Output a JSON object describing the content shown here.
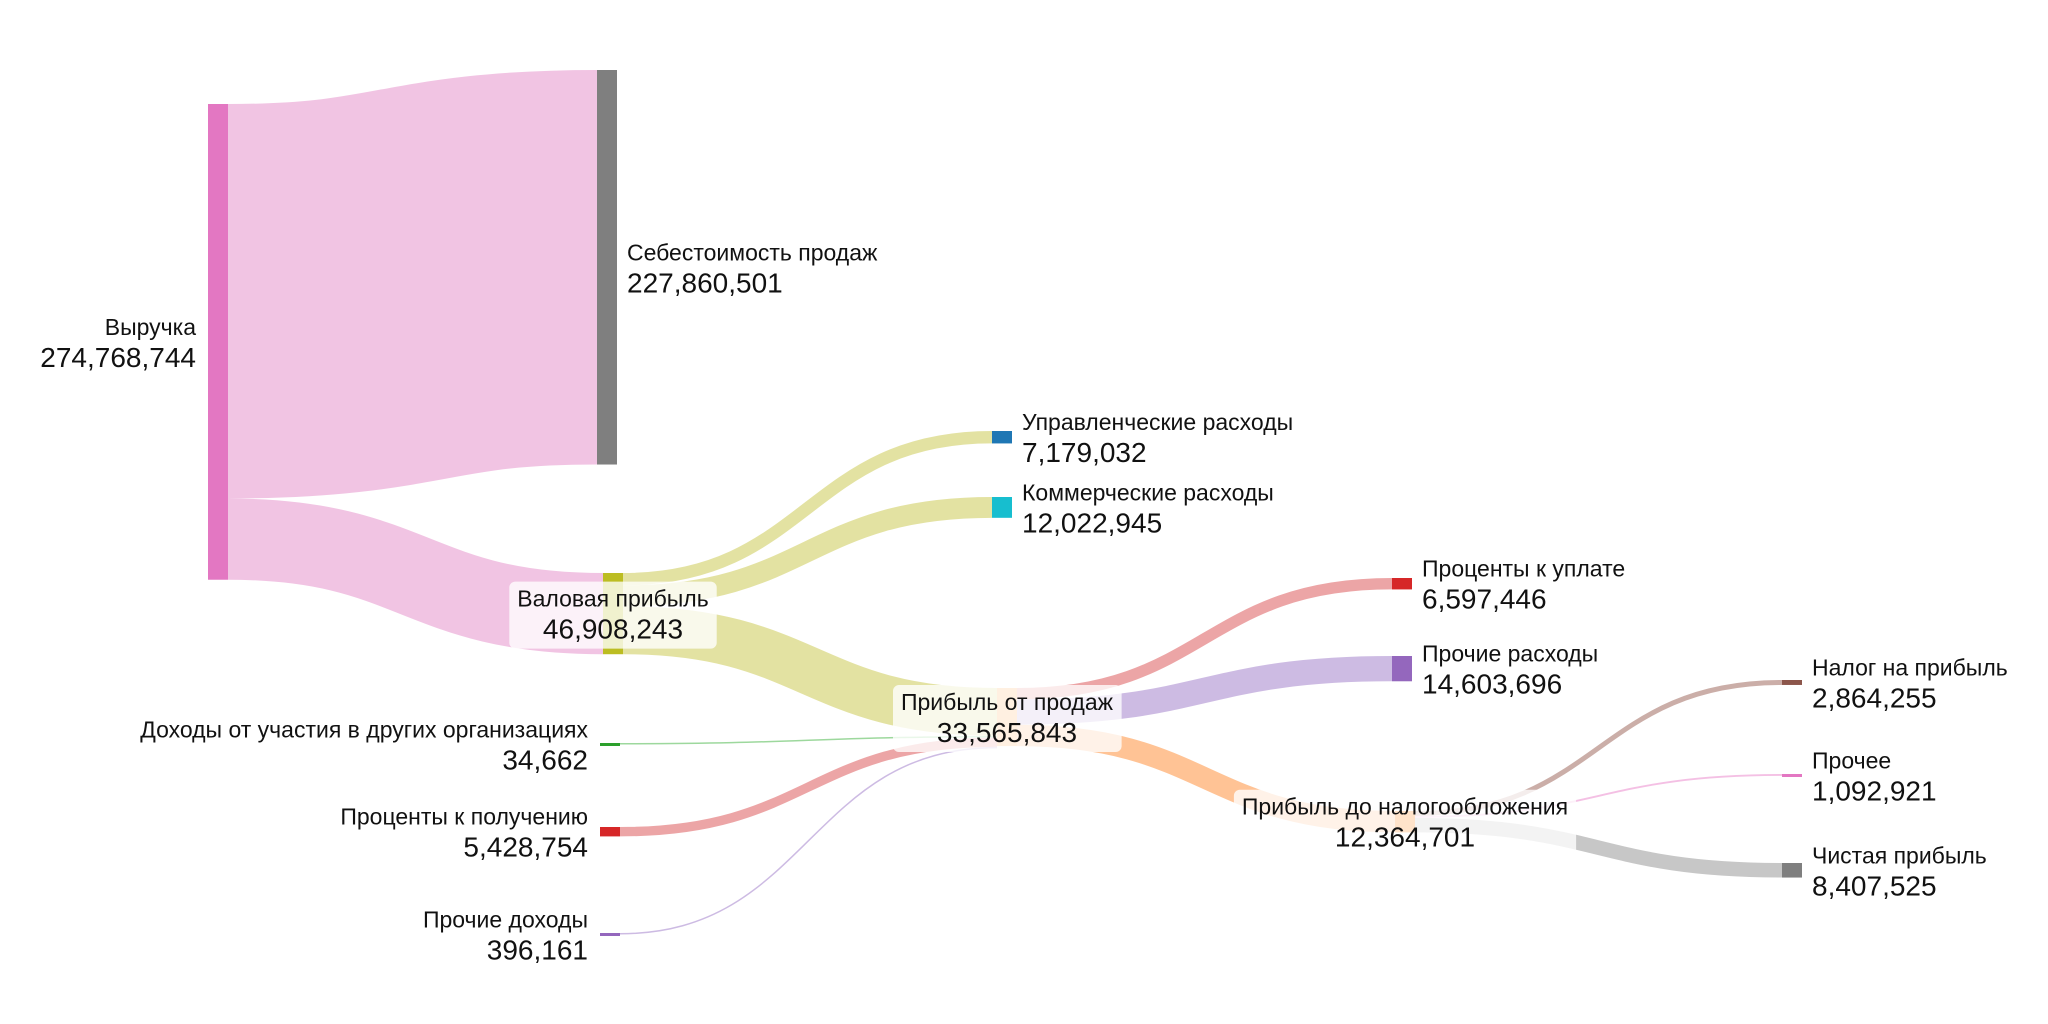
{
  "chart_data": {
    "type": "sankey",
    "title": "",
    "nodes": [
      {
        "id": "revenue",
        "name": "Выручка",
        "value": "274,768,744",
        "color": "#e377c2"
      },
      {
        "id": "cogs",
        "name": "Себестоимость продаж",
        "value": "227,860,501",
        "color": "#7f7f7f"
      },
      {
        "id": "gross",
        "name": "Валовая прибыль",
        "value": "46,908,243",
        "color": "#bcbd22"
      },
      {
        "id": "mgmt",
        "name": "Управленческие расходы",
        "value": "7,179,032",
        "color": "#1f77b4"
      },
      {
        "id": "comm",
        "name": "Коммерческие расходы",
        "value": "12,022,945",
        "color": "#17becf"
      },
      {
        "id": "sales_profit",
        "name": "Прибыль от продаж",
        "value": "33,565,843",
        "color": "#ffbb78"
      },
      {
        "id": "participation",
        "name": "Доходы от участия в других организациях",
        "value": "34,662",
        "color": "#2ca02c"
      },
      {
        "id": "int_recv",
        "name": "Проценты к получению",
        "value": "5,428,754",
        "color": "#d62728"
      },
      {
        "id": "other_inc",
        "name": "Прочие доходы",
        "value": "396,161",
        "color": "#9467bd"
      },
      {
        "id": "int_pay",
        "name": "Проценты к уплате",
        "value": "6,597,446",
        "color": "#d62728"
      },
      {
        "id": "other_exp",
        "name": "Прочие расходы",
        "value": "14,603,696",
        "color": "#9467bd"
      },
      {
        "id": "pretax",
        "name": "Прибыль до налогообложения",
        "value": "12,364,701",
        "color": "#ff7f0e"
      },
      {
        "id": "tax",
        "name": "Налог на прибыль",
        "value": "2,864,255",
        "color": "#8c564b"
      },
      {
        "id": "other",
        "name": "Прочее",
        "value": "1,092,921",
        "color": "#e377c2"
      },
      {
        "id": "net",
        "name": "Чистая прибыль",
        "value": "8,407,525",
        "color": "#7f7f7f"
      }
    ],
    "links": [
      {
        "source": "revenue",
        "target": "cogs",
        "value": 227860501,
        "color": "#f0c1e2"
      },
      {
        "source": "revenue",
        "target": "gross",
        "value": 46908243,
        "color": "#f0c1e2"
      },
      {
        "source": "gross",
        "target": "mgmt",
        "value": 7179032,
        "color": "#e1e09d"
      },
      {
        "source": "gross",
        "target": "comm",
        "value": 12022945,
        "color": "#e1e09d"
      },
      {
        "source": "gross",
        "target": "sales_profit",
        "value": 27706266,
        "color": "#e1e09d"
      },
      {
        "source": "participation",
        "target": "sales_profit",
        "value": 34662,
        "color": "#98d698"
      },
      {
        "source": "int_recv",
        "target": "sales_profit",
        "value": 5428754,
        "color": "#eba0a1"
      },
      {
        "source": "other_inc",
        "target": "sales_profit",
        "value": 396161,
        "color": "#cab7e2"
      },
      {
        "source": "sales_profit",
        "target": "int_pay",
        "value": 6597446,
        "color": "#eba0a1"
      },
      {
        "source": "sales_profit",
        "target": "other_exp",
        "value": 14603696,
        "color": "#cab7e2"
      },
      {
        "source": "sales_profit",
        "target": "pretax",
        "value": 12364701,
        "color": "#ffc08f"
      },
      {
        "source": "pretax",
        "target": "tax",
        "value": 2864255,
        "color": "#c8aaa3"
      },
      {
        "source": "pretax",
        "target": "other",
        "value": 1092921,
        "color": "#f3bde3"
      },
      {
        "source": "pretax",
        "target": "net",
        "value": 8407525,
        "color": "#c4c4c4"
      }
    ]
  }
}
